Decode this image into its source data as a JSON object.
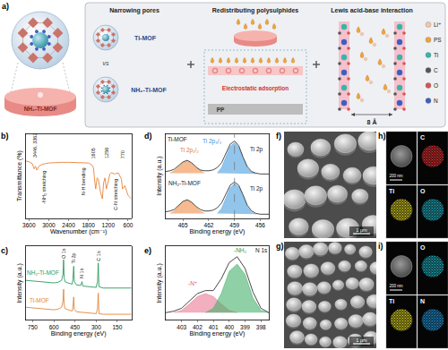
{
  "schematic": {
    "label": "a)",
    "material": "NH₂-Ti-MOF",
    "sections": [
      {
        "title": "Narrowing pores",
        "texts": [
          "Ti-MOF",
          "vs",
          "NH₂-Ti-MOF"
        ]
      },
      {
        "title": "Redistributing polysulphides",
        "texts": [
          "Electrostatic adsorption",
          "PP"
        ]
      },
      {
        "title": "Lewis acid-base interaction",
        "texts": [
          "8 Å"
        ]
      }
    ],
    "legend": [
      {
        "name": "Li⁺",
        "color": "#f4c7a8"
      },
      {
        "name": "PS",
        "color": "#f0a33a"
      },
      {
        "name": "Ti",
        "color": "#37b5a9"
      },
      {
        "name": "C",
        "color": "#555555"
      },
      {
        "name": "O",
        "color": "#d9534f"
      },
      {
        "name": "N",
        "color": "#3f5fbf"
      }
    ]
  },
  "chart_data": [
    {
      "label": "b)",
      "type": "line",
      "x_label": "Wavenumber (cm⁻¹)",
      "y_label": "Transmittance (%)",
      "x": [
        3700,
        3600,
        3500,
        3446,
        3400,
        3362,
        3300,
        3200,
        3000,
        2800,
        2600,
        2400,
        2200,
        2000,
        1800,
        1700,
        1650,
        1605,
        1580,
        1540,
        1500,
        1435,
        1380,
        1340,
        1300,
        1256,
        1200,
        1150,
        1100,
        1000,
        900,
        800,
        770,
        700,
        600,
        500
      ],
      "values": [
        88,
        87,
        84,
        76,
        80,
        74,
        80,
        83,
        85,
        86,
        86,
        86,
        86,
        86,
        85,
        82,
        78,
        55,
        45,
        62,
        60,
        40,
        30,
        55,
        62,
        45,
        60,
        68,
        70,
        68,
        70,
        60,
        45,
        50,
        35,
        30
      ],
      "color": "#e8833a",
      "xlim": [
        3700,
        500
      ],
      "xticks": [
        3600,
        3000,
        2400,
        1800,
        1200,
        600
      ],
      "ylim": [
        0,
        130
      ],
      "tick_labels": "x",
      "peak_labels": [
        {
          "text": "3446, 3362",
          "x": 3404,
          "y": 112
        },
        {
          "text": "-NH₂ stretching",
          "x": 3150,
          "y": 48
        },
        {
          "text": "N-H bending",
          "x": 1950,
          "y": 56
        },
        {
          "text": "1605",
          "x": 1650,
          "y": 100
        },
        {
          "text": "1256",
          "x": 1256,
          "y": 100
        },
        {
          "text": "C-N stretching",
          "x": 1000,
          "y": 36
        },
        {
          "text": "770",
          "x": 770,
          "y": 98
        }
      ]
    },
    {
      "label": "c)",
      "type": "line",
      "x_label": "Binding energy (eV)",
      "y_label": "Intensity (a.u.)",
      "series": [
        {
          "color": "#2e9a5e",
          "x": [
            800,
            750,
            700,
            650,
            600,
            570,
            545,
            535,
            531,
            527,
            520,
            500,
            470,
            465,
            459,
            455,
            440,
            410,
            400,
            395,
            350,
            300,
            290,
            285,
            280,
            250,
            200,
            150,
            100,
            50
          ],
          "values": [
            6.2,
            6.1,
            6.0,
            5.9,
            5.8,
            5.9,
            6.2,
            7.2,
            9.4,
            6.6,
            6.0,
            5.8,
            5.6,
            6.4,
            8.4,
            6.0,
            5.5,
            5.4,
            6.0,
            5.3,
            5.2,
            5.1,
            6.0,
            8.9,
            5.2,
            5.0,
            5.0,
            5.0,
            5.0,
            5.0
          ]
        },
        {
          "color": "#e0883a",
          "x": [
            800,
            750,
            700,
            650,
            600,
            570,
            545,
            535,
            531,
            527,
            520,
            500,
            470,
            465,
            459,
            455,
            440,
            400,
            350,
            300,
            290,
            285,
            280,
            250,
            200,
            150,
            100,
            50
          ],
          "values": [
            2.0,
            1.9,
            1.8,
            1.7,
            1.6,
            1.7,
            2.0,
            3.0,
            4.8,
            2.3,
            1.8,
            1.6,
            1.4,
            2.0,
            3.6,
            1.7,
            1.3,
            1.2,
            1.1,
            1.0,
            1.8,
            4.2,
            1.0,
            0.9,
            0.9,
            0.9,
            0.9,
            0.9
          ]
        }
      ],
      "xlim": [
        800,
        50
      ],
      "xticks": [
        750,
        600,
        450,
        300,
        150
      ],
      "ylim": [
        0,
        11.5
      ],
      "tick_labels": "x",
      "peak_labels": [
        {
          "text": "O 1s",
          "x": 531,
          "y": 10.4
        },
        {
          "text": "Ti 2p",
          "x": 459,
          "y": 9.7
        },
        {
          "text": "N 1s",
          "x": 400,
          "y": 7.3
        },
        {
          "text": "C 1s",
          "x": 285,
          "y": 10.0
        }
      ],
      "annotations": [
        {
          "text": "NH₂-Ti-MOF",
          "x": 680,
          "y": 7.4,
          "color": "#2e9a5e"
        },
        {
          "text": "Ti-MOF",
          "x": 700,
          "y": 3.1,
          "color": "#e0883a"
        }
      ]
    },
    {
      "label": "d)",
      "type": "line",
      "x_label": "Binding energy (eV)",
      "y_label": "Intensity (a.u.)",
      "series": [
        {
          "color": "#333333",
          "x": [
            467,
            466.5,
            466,
            465.5,
            465,
            464.5,
            464,
            463.5,
            463,
            462.5,
            462,
            461.5,
            461,
            460.5,
            460,
            459.5,
            459,
            458.5,
            458,
            457.5,
            457,
            456.5,
            456,
            455.5,
            455
          ],
          "values": [
            5.8,
            5.9,
            6.1,
            6.5,
            7.0,
            7.2,
            6.9,
            6.4,
            6.0,
            5.9,
            5.9,
            6.0,
            6.3,
            6.9,
            8.0,
            9.2,
            9.6,
            9.0,
            7.6,
            6.4,
            5.8,
            5.6,
            5.5,
            5.5,
            5.5
          ]
        },
        {
          "type": "area",
          "color": "#f08c46",
          "x": [
            466.5,
            466,
            465.5,
            465,
            464.5,
            464,
            463.5,
            463,
            462.5
          ],
          "values": [
            5.6,
            5.9,
            6.4,
            6.9,
            7.1,
            6.8,
            6.3,
            5.9,
            5.6
          ]
        },
        {
          "type": "area",
          "color": "#4a9fe0",
          "x": [
            461,
            460.5,
            460,
            459.5,
            459,
            458.5,
            458,
            457.5,
            457,
            456.5
          ],
          "values": [
            5.6,
            6.3,
            7.6,
            8.9,
            9.4,
            8.8,
            7.4,
            6.2,
            5.7,
            5.5
          ]
        },
        {
          "color": "#333333",
          "x": [
            467,
            466.5,
            466,
            465.5,
            465,
            464.5,
            464,
            463.5,
            463,
            462.5,
            462,
            461.5,
            461,
            460.5,
            460,
            459.5,
            459,
            458.5,
            458,
            457.5,
            457,
            456.5,
            456,
            455.5,
            455
          ],
          "values": [
            0.8,
            0.9,
            1.1,
            1.6,
            2.1,
            2.3,
            2.0,
            1.5,
            1.1,
            0.9,
            0.9,
            1.0,
            1.3,
            1.9,
            3.0,
            4.1,
            4.5,
            4.1,
            2.9,
            1.6,
            0.9,
            0.6,
            0.5,
            0.5,
            0.5
          ]
        },
        {
          "type": "area",
          "color": "#f08c46",
          "x": [
            466.5,
            466,
            465.5,
            465,
            464.5,
            464,
            463.5,
            463,
            462.5
          ],
          "values": [
            0.6,
            0.9,
            1.5,
            2.0,
            2.2,
            1.9,
            1.4,
            0.9,
            0.6
          ]
        },
        {
          "type": "area",
          "color": "#4a9fe0",
          "x": [
            461,
            460.5,
            460,
            459.5,
            459,
            458.5,
            458,
            457.5,
            457,
            456.5
          ],
          "values": [
            0.6,
            1.2,
            2.5,
            3.8,
            4.3,
            3.9,
            2.7,
            1.4,
            0.7,
            0.5
          ]
        }
      ],
      "xlim": [
        467,
        455
      ],
      "xticks": [
        465,
        462,
        459,
        456
      ],
      "ylim": [
        0,
        10.5
      ],
      "tick_labels": "x",
      "reference_line": 459,
      "annotations": [
        {
          "text": "Ti-MOF",
          "x": 465.6,
          "y": 9.8
        },
        {
          "text": "Ti 2p₁/₂",
          "x": 464.2,
          "y": 8.4,
          "color": "#e07a30"
        },
        {
          "text": "Ti 2p₃/₂",
          "x": 461.6,
          "y": 9.6,
          "color": "#3a8fd6"
        },
        {
          "text": "Ti 2p",
          "x": 456.4,
          "y": 8.6
        },
        {
          "text": "NH₂-Ti-MOF",
          "x": 464.8,
          "y": 4.4
        },
        {
          "text": "Ti 2p",
          "x": 456.4,
          "y": 3.6
        }
      ]
    },
    {
      "label": "e)",
      "type": "line",
      "x_label": "Binding energy (eV)",
      "y_label": "Intensity (a.u.)",
      "series": [
        {
          "color": "#333333",
          "x": [
            404,
            403.5,
            403,
            402.5,
            402,
            401.5,
            401,
            400.5,
            400,
            399.5,
            399,
            398.5,
            398,
            397.5
          ],
          "values": [
            1.0,
            1.2,
            1.6,
            2.6,
            3.6,
            4.0,
            4.0,
            5.6,
            7.8,
            8.6,
            7.0,
            3.8,
            1.6,
            1.0
          ]
        },
        {
          "type": "area",
          "color": "#e87a94",
          "x": [
            403.5,
            403,
            402.5,
            402,
            401.5,
            401,
            400.5,
            400,
            399.5
          ],
          "values": [
            1.0,
            1.3,
            2.2,
            3.2,
            3.6,
            3.2,
            2.2,
            1.3,
            1.0
          ]
        },
        {
          "type": "area",
          "color": "#45b06a",
          "x": [
            401.5,
            401,
            400.5,
            400,
            399.5,
            399,
            398.5,
            398,
            397.5
          ],
          "values": [
            1.0,
            1.6,
            3.6,
            6.6,
            7.6,
            6.2,
            3.0,
            1.3,
            1.0
          ]
        }
      ],
      "xlim": [
        404,
        397.5
      ],
      "xticks": [
        403,
        402,
        401,
        400,
        399,
        398
      ],
      "ylim": [
        0,
        10
      ],
      "tick_labels": "x",
      "annotations": [
        {
          "text": "-N⁺",
          "x": 402.3,
          "y": 5.0,
          "color": "#d9607a"
        },
        {
          "text": "-NH₂",
          "x": 399.3,
          "y": 9.5,
          "color": "#2e9a5e"
        },
        {
          "text": "N 1s",
          "x": 397.95,
          "y": 9.5
        }
      ]
    }
  ],
  "micrographs": [
    {
      "label": "f)",
      "scale_bar": "1 μm"
    },
    {
      "label": "g)",
      "scale_bar": "1 μm"
    }
  ],
  "elemental_maps": [
    {
      "label": "h)",
      "scale_bar": "200 nm",
      "maps": [
        {
          "element": "C",
          "color": "#e03030"
        },
        {
          "element": "Ti",
          "color": "#d8d020"
        },
        {
          "element": "O",
          "color": "#20b0c0"
        }
      ]
    },
    {
      "label": "i)",
      "scale_bar": "200 nm",
      "maps": [
        {
          "element": "O",
          "color": "#20b0c0"
        },
        {
          "element": "Ti",
          "color": "#d8d020"
        },
        {
          "element": "N",
          "color": "#2090d0"
        }
      ]
    }
  ]
}
